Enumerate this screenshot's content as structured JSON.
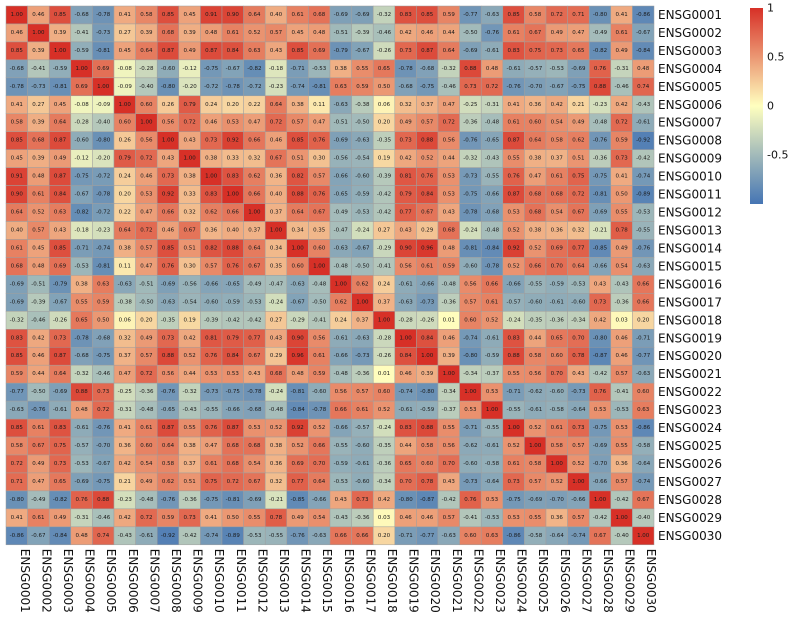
{
  "chart_data": {
    "type": "heatmap",
    "rows": [
      "ENSG0001",
      "ENSG0002",
      "ENSG0003",
      "ENSG0004",
      "ENSG0005",
      "ENSG0006",
      "ENSG0007",
      "ENSG0008",
      "ENSG0009",
      "ENSG0010",
      "ENSG0011",
      "ENSG0012",
      "ENSG0013",
      "ENSG0014",
      "ENSG0015",
      "ENSG0016",
      "ENSG0017",
      "ENSG0018",
      "ENSG0019",
      "ENSG0020",
      "ENSG0021",
      "ENSG0022",
      "ENSG0023",
      "ENSG0024",
      "ENSG0025",
      "ENSG0026",
      "ENSG0027",
      "ENSG0028",
      "ENSG0029",
      "ENSG0030"
    ],
    "columns": [
      "ENSG0001",
      "ENSG0002",
      "ENSG0003",
      "ENSG0004",
      "ENSG0005",
      "ENSG0006",
      "ENSG0007",
      "ENSG0008",
      "ENSG0009",
      "ENSG0010",
      "ENSG0011",
      "ENSG0012",
      "ENSG0013",
      "ENSG0014",
      "ENSG0015",
      "ENSG0016",
      "ENSG0017",
      "ENSG0018",
      "ENSG0019",
      "ENSG0020",
      "ENSG0021",
      "ENSG0022",
      "ENSG0023",
      "ENSG0024",
      "ENSG0025",
      "ENSG0026",
      "ENSG0027",
      "ENSG0028",
      "ENSG0029",
      "ENSG0030"
    ],
    "values": [
      [
        1,
        0.46,
        0.85,
        -0.68,
        -0.78,
        0.41,
        0.58,
        0.85,
        0.45,
        0.91,
        0.9,
        0.64,
        0.4,
        0.61,
        0.68,
        -0.69,
        -0.69,
        -0.32,
        0.83,
        0.85,
        0.59,
        -0.77,
        -0.63,
        0.85,
        0.58,
        0.72,
        0.71,
        -0.8,
        0.41,
        -0.86
      ],
      [
        0.46,
        1,
        0.39,
        -0.41,
        -0.73,
        0.27,
        0.39,
        0.68,
        0.39,
        0.48,
        0.61,
        0.52,
        0.57,
        0.45,
        0.48,
        -0.51,
        -0.39,
        -0.46,
        0.42,
        0.46,
        0.44,
        -0.5,
        -0.76,
        0.61,
        0.67,
        0.49,
        0.47,
        -0.49,
        0.61,
        -0.67
      ],
      [
        0.85,
        0.39,
        1,
        -0.59,
        -0.81,
        0.45,
        0.64,
        0.87,
        0.49,
        0.87,
        0.84,
        0.63,
        0.43,
        0.85,
        0.69,
        -0.79,
        -0.67,
        -0.26,
        0.73,
        0.87,
        0.64,
        -0.69,
        -0.61,
        0.83,
        0.75,
        0.73,
        0.65,
        -0.82,
        0.49,
        -0.84
      ],
      [
        -0.68,
        -0.41,
        -0.59,
        1,
        0.69,
        -0.08,
        -0.28,
        -0.6,
        -0.12,
        -0.75,
        -0.67,
        -0.82,
        -0.18,
        -0.71,
        -0.53,
        0.38,
        0.55,
        0.65,
        -0.78,
        -0.68,
        -0.32,
        0.88,
        0.48,
        -0.61,
        -0.57,
        -0.53,
        -0.69,
        0.76,
        -0.31,
        0.48
      ],
      [
        -0.78,
        -0.73,
        -0.81,
        0.69,
        1,
        -0.09,
        -0.4,
        -0.8,
        -0.2,
        -0.72,
        -0.78,
        -0.72,
        -0.23,
        -0.74,
        -0.81,
        0.63,
        0.59,
        0.5,
        -0.68,
        -0.75,
        -0.46,
        0.73,
        0.72,
        -0.76,
        -0.7,
        -0.67,
        -0.75,
        0.88,
        -0.46,
        0.74
      ],
      [
        0.41,
        0.27,
        0.45,
        -0.08,
        -0.09,
        1,
        0.6,
        0.26,
        0.79,
        0.24,
        0.2,
        0.22,
        0.64,
        0.38,
        0.11,
        -0.63,
        -0.38,
        0.06,
        0.32,
        0.37,
        0.47,
        -0.25,
        -0.31,
        0.41,
        0.36,
        0.42,
        0.21,
        -0.23,
        0.42,
        -0.43
      ],
      [
        0.58,
        0.39,
        0.64,
        -0.28,
        -0.4,
        0.6,
        1,
        0.56,
        0.72,
        0.46,
        0.53,
        0.47,
        0.72,
        0.57,
        0.47,
        -0.51,
        -0.5,
        0.2,
        0.49,
        0.57,
        0.72,
        -0.36,
        -0.48,
        0.61,
        0.6,
        0.54,
        0.49,
        -0.48,
        0.72,
        -0.61
      ],
      [
        0.85,
        0.68,
        0.87,
        -0.6,
        -0.8,
        0.26,
        0.56,
        1,
        0.43,
        0.73,
        0.92,
        0.66,
        0.46,
        0.85,
        0.76,
        -0.69,
        -0.63,
        -0.35,
        0.73,
        0.88,
        0.56,
        -0.76,
        -0.65,
        0.87,
        0.64,
        0.58,
        0.62,
        -0.76,
        0.59,
        -0.92
      ],
      [
        0.45,
        0.39,
        0.49,
        -0.12,
        -0.2,
        0.79,
        0.72,
        0.43,
        1,
        0.38,
        0.33,
        0.32,
        0.67,
        0.51,
        0.3,
        -0.56,
        -0.54,
        0.19,
        0.42,
        0.52,
        0.44,
        -0.32,
        -0.43,
        0.55,
        0.38,
        0.37,
        0.51,
        -0.36,
        0.73,
        -0.42
      ],
      [
        0.91,
        0.48,
        0.87,
        -0.75,
        -0.72,
        0.24,
        0.46,
        0.73,
        0.38,
        1,
        0.83,
        0.62,
        0.36,
        0.82,
        0.57,
        -0.66,
        -0.6,
        -0.39,
        0.81,
        0.76,
        0.53,
        -0.73,
        -0.55,
        0.76,
        0.47,
        0.61,
        0.75,
        -0.75,
        0.41,
        -0.74
      ],
      [
        0.9,
        0.61,
        0.84,
        -0.67,
        -0.78,
        0.2,
        0.53,
        0.92,
        0.33,
        0.83,
        1,
        0.66,
        0.4,
        0.88,
        0.76,
        -0.65,
        -0.59,
        -0.42,
        0.79,
        0.84,
        0.53,
        -0.75,
        -0.66,
        0.87,
        0.68,
        0.68,
        0.72,
        -0.81,
        0.5,
        -0.89
      ],
      [
        0.64,
        0.52,
        0.63,
        -0.82,
        -0.72,
        0.22,
        0.47,
        0.66,
        0.32,
        0.62,
        0.66,
        1,
        0.37,
        0.64,
        0.67,
        -0.49,
        -0.53,
        -0.42,
        0.77,
        0.67,
        0.43,
        -0.78,
        -0.68,
        0.53,
        0.68,
        0.54,
        0.67,
        -0.69,
        0.55,
        -0.53
      ],
      [
        0.4,
        0.57,
        0.43,
        -0.18,
        -0.23,
        0.64,
        0.72,
        0.46,
        0.67,
        0.36,
        0.4,
        0.37,
        1,
        0.34,
        0.35,
        -0.47,
        -0.24,
        0.27,
        0.43,
        0.29,
        0.68,
        -0.24,
        -0.48,
        0.52,
        0.38,
        0.36,
        0.32,
        -0.21,
        0.78,
        -0.55
      ],
      [
        0.61,
        0.45,
        0.85,
        -0.71,
        -0.74,
        0.38,
        0.57,
        0.85,
        0.51,
        0.82,
        0.88,
        0.64,
        0.34,
        1,
        0.6,
        -0.63,
        -0.67,
        -0.29,
        0.9,
        0.96,
        0.48,
        -0.81,
        -0.84,
        0.92,
        0.52,
        0.69,
        0.77,
        -0.85,
        0.49,
        -0.76
      ],
      [
        0.68,
        0.48,
        0.69,
        -0.53,
        -0.81,
        0.11,
        0.47,
        0.76,
        0.3,
        0.57,
        0.76,
        0.67,
        0.35,
        0.6,
        1,
        -0.48,
        -0.5,
        -0.41,
        0.56,
        0.61,
        0.59,
        -0.6,
        -0.78,
        0.52,
        0.66,
        0.7,
        0.64,
        -0.66,
        0.54,
        -0.63
      ],
      [
        -0.69,
        -0.51,
        -0.79,
        0.38,
        0.63,
        -0.63,
        -0.51,
        -0.69,
        -0.56,
        -0.66,
        -0.65,
        -0.49,
        -0.47,
        -0.63,
        -0.48,
        1,
        0.62,
        0.24,
        -0.61,
        -0.66,
        -0.48,
        0.56,
        0.66,
        -0.66,
        -0.55,
        -0.59,
        -0.53,
        0.43,
        -0.43,
        0.66
      ],
      [
        -0.69,
        -0.39,
        -0.67,
        0.55,
        0.59,
        -0.38,
        -0.5,
        -0.63,
        -0.54,
        -0.6,
        -0.59,
        -0.53,
        -0.24,
        -0.67,
        -0.5,
        0.62,
        1,
        0.37,
        -0.63,
        -0.73,
        -0.36,
        0.57,
        0.61,
        -0.57,
        -0.6,
        -0.61,
        -0.6,
        0.73,
        -0.36,
        0.66
      ],
      [
        -0.32,
        -0.46,
        -0.26,
        0.65,
        0.5,
        0.06,
        0.2,
        -0.35,
        0.19,
        -0.39,
        -0.42,
        -0.42,
        0.27,
        -0.29,
        -0.41,
        0.24,
        0.37,
        1,
        -0.28,
        -0.26,
        0.01,
        0.6,
        0.52,
        -0.24,
        -0.35,
        -0.36,
        -0.34,
        0.42,
        0.03,
        0.2
      ],
      [
        0.83,
        0.42,
        0.73,
        -0.78,
        -0.68,
        0.32,
        0.49,
        0.73,
        0.42,
        0.81,
        0.79,
        0.77,
        0.43,
        0.9,
        0.56,
        -0.61,
        -0.63,
        -0.28,
        1,
        0.84,
        0.46,
        -0.74,
        -0.61,
        0.83,
        0.44,
        0.65,
        0.7,
        -0.8,
        0.46,
        -0.71
      ],
      [
        0.85,
        0.46,
        0.87,
        -0.68,
        -0.75,
        0.37,
        0.57,
        0.88,
        0.52,
        0.76,
        0.84,
        0.67,
        0.29,
        0.96,
        0.61,
        -0.66,
        -0.73,
        -0.26,
        0.84,
        1,
        0.39,
        -0.8,
        -0.59,
        0.88,
        0.58,
        0.6,
        0.78,
        -0.87,
        0.46,
        -0.77
      ],
      [
        0.59,
        0.44,
        0.64,
        -0.32,
        -0.46,
        0.47,
        0.72,
        0.56,
        0.44,
        0.53,
        0.53,
        0.43,
        0.68,
        0.48,
        0.59,
        -0.48,
        -0.36,
        0.01,
        0.46,
        0.39,
        1,
        -0.34,
        -0.37,
        0.55,
        0.56,
        0.7,
        0.43,
        -0.42,
        0.57,
        -0.63
      ],
      [
        -0.77,
        -0.5,
        -0.69,
        0.88,
        0.73,
        -0.25,
        -0.36,
        -0.76,
        -0.32,
        -0.73,
        -0.75,
        -0.78,
        -0.24,
        -0.81,
        -0.6,
        0.56,
        0.57,
        0.6,
        -0.74,
        -0.8,
        -0.34,
        1,
        0.53,
        -0.71,
        -0.62,
        -0.6,
        -0.73,
        0.76,
        -0.41,
        0.6
      ],
      [
        -0.63,
        -0.76,
        -0.61,
        0.48,
        0.72,
        -0.31,
        -0.48,
        -0.65,
        -0.43,
        -0.55,
        -0.66,
        -0.68,
        -0.48,
        -0.84,
        -0.78,
        0.66,
        0.61,
        0.52,
        -0.61,
        -0.59,
        -0.37,
        0.53,
        1,
        -0.55,
        -0.61,
        -0.58,
        -0.64,
        0.53,
        -0.53,
        0.63
      ],
      [
        0.85,
        0.61,
        0.83,
        -0.61,
        -0.76,
        0.41,
        0.61,
        0.87,
        0.55,
        0.76,
        0.87,
        0.53,
        0.52,
        0.92,
        0.52,
        -0.66,
        -0.57,
        -0.24,
        0.83,
        0.88,
        0.55,
        -0.71,
        -0.55,
        1,
        0.52,
        0.61,
        0.73,
        -0.75,
        0.53,
        -0.86
      ],
      [
        0.58,
        0.67,
        0.75,
        -0.57,
        -0.7,
        0.36,
        0.6,
        0.64,
        0.38,
        0.47,
        0.68,
        0.68,
        0.38,
        0.52,
        0.66,
        -0.55,
        -0.6,
        -0.35,
        0.44,
        0.58,
        0.56,
        -0.62,
        -0.61,
        0.52,
        1,
        0.58,
        0.57,
        -0.69,
        0.55,
        -0.58
      ],
      [
        0.72,
        0.49,
        0.73,
        -0.53,
        -0.67,
        0.42,
        0.54,
        0.58,
        0.37,
        0.61,
        0.68,
        0.54,
        0.36,
        0.69,
        0.7,
        -0.59,
        -0.61,
        -0.36,
        0.65,
        0.6,
        0.7,
        -0.6,
        -0.58,
        0.61,
        0.58,
        1,
        0.52,
        -0.7,
        0.36,
        -0.64
      ],
      [
        0.71,
        0.47,
        0.65,
        -0.69,
        -0.75,
        0.21,
        0.49,
        0.62,
        0.51,
        0.75,
        0.72,
        0.67,
        0.32,
        0.77,
        0.64,
        -0.53,
        -0.6,
        -0.34,
        0.7,
        0.78,
        0.43,
        -0.73,
        -0.64,
        0.73,
        0.57,
        0.52,
        1,
        -0.66,
        0.57,
        -0.74
      ],
      [
        -0.8,
        -0.49,
        -0.82,
        0.76,
        0.88,
        -0.23,
        -0.48,
        -0.76,
        -0.36,
        -0.75,
        -0.81,
        -0.69,
        -0.21,
        -0.85,
        -0.66,
        0.43,
        0.73,
        0.42,
        -0.8,
        -0.87,
        -0.42,
        0.76,
        0.53,
        -0.75,
        -0.69,
        -0.7,
        -0.66,
        1,
        -0.42,
        0.67
      ],
      [
        0.41,
        0.61,
        0.49,
        -0.31,
        -0.46,
        0.42,
        0.72,
        0.59,
        0.73,
        0.41,
        0.5,
        0.55,
        0.78,
        0.49,
        0.54,
        -0.43,
        -0.36,
        0.03,
        0.46,
        0.46,
        0.57,
        -0.41,
        -0.53,
        0.53,
        0.55,
        0.36,
        0.57,
        -0.42,
        1,
        -0.4
      ],
      [
        -0.86,
        -0.67,
        -0.84,
        0.48,
        0.74,
        -0.43,
        -0.61,
        -0.92,
        -0.42,
        -0.74,
        -0.89,
        -0.53,
        -0.55,
        -0.76,
        -0.63,
        0.66,
        0.66,
        0.2,
        -0.71,
        -0.77,
        -0.63,
        0.6,
        0.63,
        -0.86,
        -0.58,
        -0.64,
        -0.74,
        0.67,
        -0.4,
        1
      ]
    ],
    "color_scale": {
      "min": -1,
      "max": 1,
      "low_color": "#4575b4",
      "mid_color": "#ffffbf",
      "high_color": "#d73027"
    },
    "legend": {
      "placement": "right",
      "ticks": [
        {
          "value": 1,
          "label": "1"
        },
        {
          "value": 0.5,
          "label": "0.5"
        },
        {
          "value": 0,
          "label": "0"
        },
        {
          "value": -0.5,
          "label": "-0.5"
        }
      ]
    }
  }
}
